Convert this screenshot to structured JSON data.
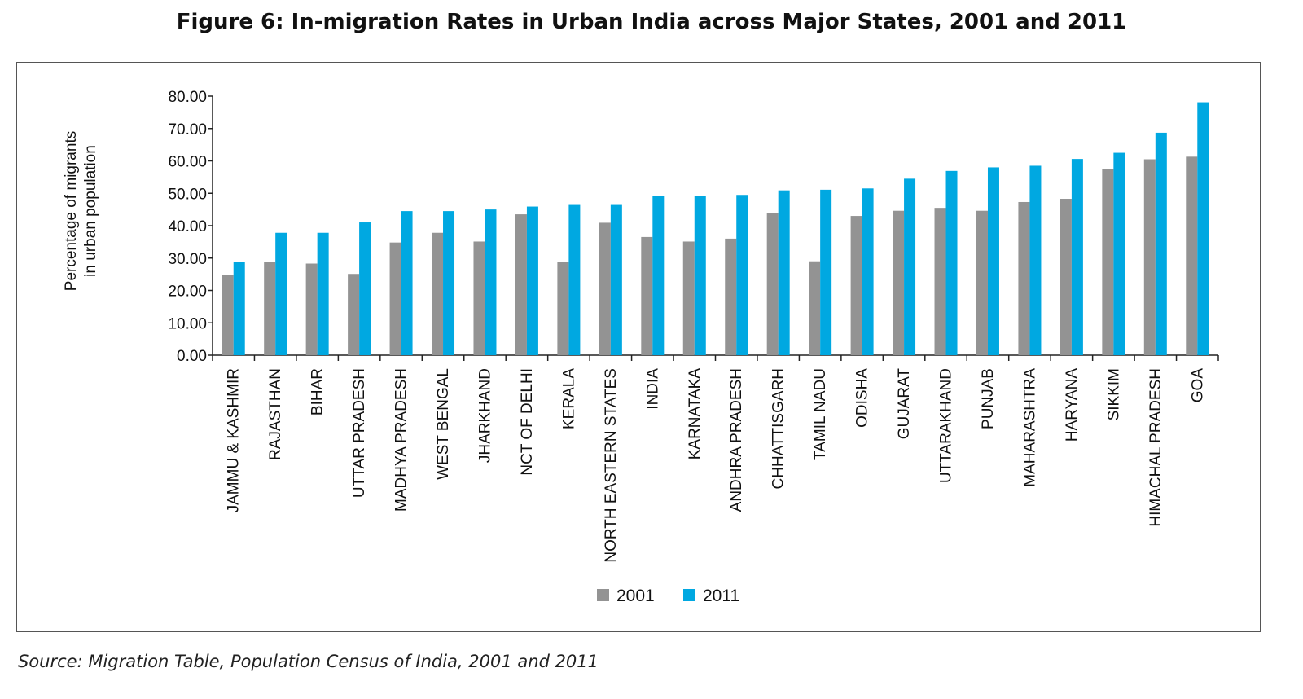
{
  "figure": {
    "title": "Figure 6: In-migration Rates in Urban India across Major States, 2001 and 2011",
    "source": "Source: Migration Table, Population Census of India, 2001 and 2011"
  },
  "chart_data": {
    "type": "bar",
    "title": "Figure 6: In-migration Rates in Urban India across Major States, 2001 and 2011",
    "xlabel": "",
    "ylabel": "Percentage of migrants in urban population",
    "ylabel_lines": [
      "Percentage of migrants",
      "in urban population"
    ],
    "ylim": [
      0,
      80
    ],
    "yticks": [
      "0.00",
      "10.00",
      "20.00",
      "30.00",
      "40.00",
      "50.00",
      "60.00",
      "70.00",
      "80.00"
    ],
    "grid": false,
    "legend_position": "bottom",
    "categories": [
      "JAMMU & KASHMIR",
      "RAJASTHAN",
      "BIHAR",
      "UTTAR PRADESH",
      "MADHYA PRADESH",
      "WEST BENGAL",
      "JHARKHAND",
      "NCT OF DELHI",
      "KERALA",
      "NORTH EASTERN STATES",
      "INDIA",
      "KARNATAKA",
      "ANDHRA PRADESH",
      "CHHATTISGARH",
      "TAMIL NADU",
      "ODISHA",
      "GUJARAT",
      "UTTARAKHAND",
      "PUNJAB",
      "MAHARASHTRA",
      "HARYANA",
      "SIKKIM",
      "HIMACHAL PRADESH",
      "GOA"
    ],
    "series": [
      {
        "name": "2001",
        "color": "#939393",
        "values": [
          24.8,
          28.9,
          28.3,
          25.1,
          34.8,
          37.8,
          35.1,
          43.5,
          28.7,
          40.9,
          36.5,
          35.1,
          36.0,
          44.0,
          29.0,
          43.0,
          44.6,
          45.5,
          44.6,
          47.3,
          48.3,
          57.5,
          60.5,
          61.3
        ]
      },
      {
        "name": "2011",
        "color": "#00a8e1",
        "values": [
          28.9,
          37.8,
          37.8,
          41.0,
          44.5,
          44.5,
          45.0,
          45.9,
          46.4,
          46.4,
          49.2,
          49.2,
          49.5,
          50.9,
          51.1,
          51.5,
          54.5,
          56.9,
          58.0,
          58.5,
          60.6,
          62.5,
          68.7,
          78.1
        ]
      }
    ]
  }
}
